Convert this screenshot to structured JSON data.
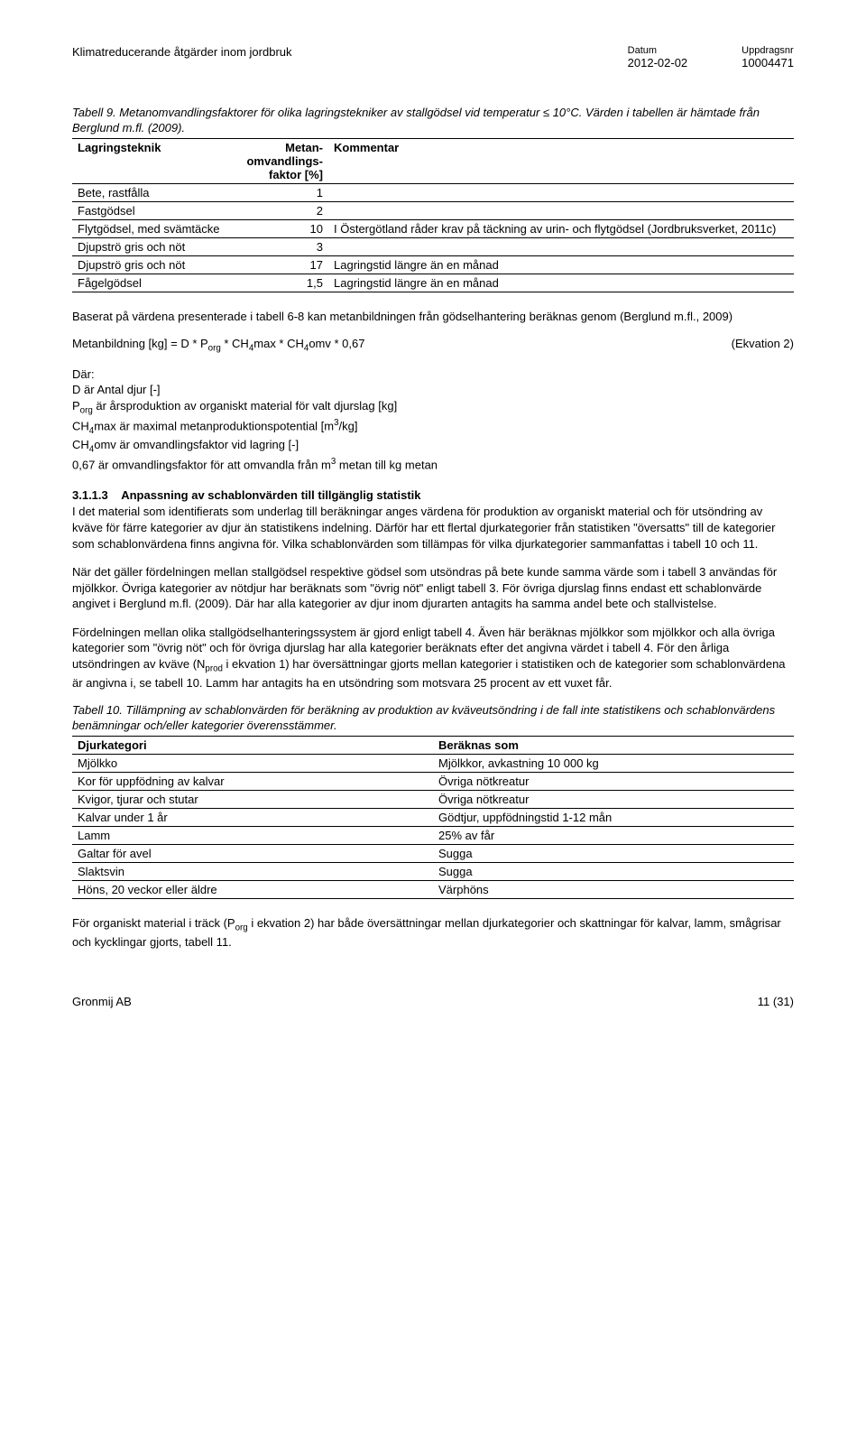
{
  "header": {
    "title": "Klimatreducerande åtgärder inom jordbruk",
    "datum_label": "Datum",
    "datum_value": "2012-02-02",
    "uppdrag_label": "Uppdragsnr",
    "uppdrag_value": "10004471"
  },
  "table9": {
    "caption": "Tabell 9. Metanomvandlingsfaktorer för olika lagringstekniker av stallgödsel vid temperatur ≤ 10°C. Värden i tabellen är hämtade från Berglund m.fl. (2009).",
    "col1": "Lagringsteknik",
    "col2": "Metan-omvandlings-faktor [%]",
    "col3": "Kommentar",
    "rows": [
      {
        "c1": "Bete, rastfålla",
        "c2": "1",
        "c3": ""
      },
      {
        "c1": "Fastgödsel",
        "c2": "2",
        "c3": ""
      },
      {
        "c1": "Flytgödsel, med svämtäcke",
        "c2": "10",
        "c3": "I Östergötland råder krav på täckning av urin- och flytgödsel (Jordbruksverket, 2011c)"
      },
      {
        "c1": "Djupströ gris och nöt",
        "c2": "3",
        "c3": ""
      },
      {
        "c1": "Djupströ gris och nöt",
        "c2": "17",
        "c3": "Lagringstid längre än en månad"
      },
      {
        "c1": "Fågelgödsel",
        "c2": "1,5",
        "c3": "Lagringstid längre än en månad"
      }
    ]
  },
  "para_after_t9": "Baserat på värdena presenterade i tabell 6-8 kan metanbildningen från gödselhantering beräknas genom (Berglund m.fl., 2009)",
  "equation": {
    "lhs": "Metanbildning [kg] = D * P",
    "sub1": "org",
    "mid1": " * CH",
    "sub2": "4",
    "mid2": "max * CH",
    "sub3": "4",
    "mid3": "omv * 0,67",
    "label": "(Ekvation 2)"
  },
  "where": {
    "title": "Där:",
    "l1_a": "D är Antal djur [-]",
    "l2_pre": "P",
    "l2_sub": "org",
    "l2_post": " är årsproduktion av organiskt material för valt djurslag [kg]",
    "l3_pre": "CH",
    "l3_sub": "4",
    "l3_mid": "max är maximal metanproduktionspotential [m",
    "l3_sup": "3",
    "l3_post": "/kg]",
    "l4_pre": "CH",
    "l4_sub": "4",
    "l4_post": "omv är omvandlingsfaktor vid lagring [-]",
    "l5_pre": "0,67 är omvandlingsfaktor för att omvandla från m",
    "l5_sup": "3",
    "l5_post": " metan till kg metan"
  },
  "section": {
    "num": "3.1.1.3",
    "title": "Anpassning av schablonvärden till tillgänglig statistik"
  },
  "p1": "I det material som identifierats som underlag till beräkningar anges värdena för produktion av organiskt material och för utsöndring av kväve för färre kategorier av djur än statistikens indelning. Därför har ett flertal djurkategorier från statistiken \"översatts\" till de kategorier som schablonvärdena finns angivna för. Vilka schablonvärden som tillämpas för vilka djurkategorier sammanfattas i tabell 10 och 11.",
  "p2": "När det gäller fördelningen mellan stallgödsel respektive gödsel som utsöndras på bete kunde samma värde som i tabell 3 användas för mjölkkor. Övriga kategorier av nötdjur har beräknats som \"övrig nöt\" enligt tabell 3. För övriga djurslag finns endast ett schablonvärde angivet i Berglund m.fl. (2009). Där har alla kategorier av djur inom djurarten antagits ha samma andel bete och stallvistelse.",
  "p3a": "Fördelningen mellan olika stallgödselhanteringssystem är gjord enligt tabell 4. Även här beräknas mjölkkor som mjölkkor och alla övriga kategorier som \"övrig nöt\" och för övriga djurslag har alla kategorier beräknats efter det angivna värdet i tabell 4. För den årliga utsöndringen av kväve (N",
  "p3_sub": "prod",
  "p3b": " i ekvation 1) har översättningar gjorts mellan kategorier i statistiken och de kategorier som schablonvärdena är angivna i, se tabell 10. Lamm har antagits ha en utsöndring som motsvara 25 procent av ett vuxet får.",
  "table10": {
    "caption": "Tabell 10. Tillämpning av schablonvärden för beräkning av produktion av kväveutsöndring i de fall inte statistikens och schablonvärdens benämningar och/eller kategorier överensstämmer.",
    "col1": "Djurkategori",
    "col2": "Beräknas som",
    "rows": [
      {
        "c1": "Mjölkko",
        "c2": "Mjölkkor, avkastning 10 000 kg"
      },
      {
        "c1": "Kor för uppfödning av kalvar",
        "c2": "Övriga nötkreatur"
      },
      {
        "c1": "Kvigor, tjurar och stutar",
        "c2": "Övriga nötkreatur"
      },
      {
        "c1": "Kalvar under 1 år",
        "c2": "Gödtjur, uppfödningstid 1-12 mån"
      },
      {
        "c1": "Lamm",
        "c2": "25% av får"
      },
      {
        "c1": "Galtar för avel",
        "c2": "Sugga"
      },
      {
        "c1": "Slaktsvin",
        "c2": "Sugga"
      },
      {
        "c1": "Höns, 20 veckor eller äldre",
        "c2": "Värphöns"
      }
    ]
  },
  "p4a": "För organiskt material i träck (P",
  "p4_sub": "org",
  "p4b": " i ekvation 2) har både översättningar mellan djurkategorier och skattningar för kalvar, lamm, smågrisar och kycklingar gjorts, tabell 11.",
  "footer": {
    "left": "Gronmij AB",
    "right": "11 (31)"
  }
}
